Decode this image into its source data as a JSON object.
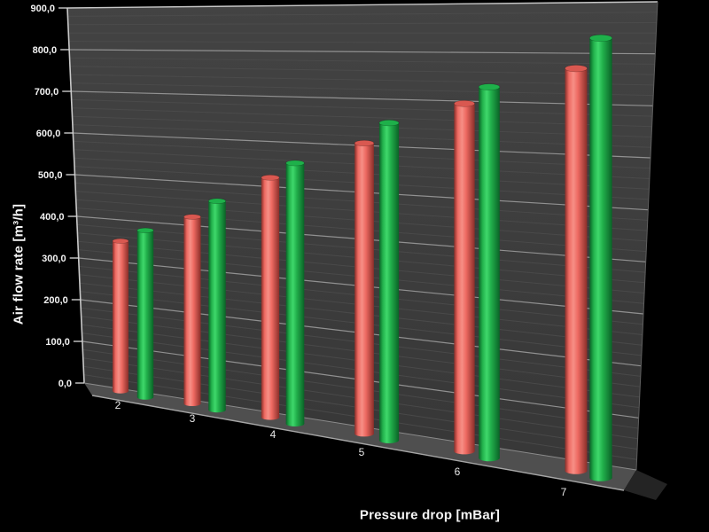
{
  "chart_data": {
    "type": "bar",
    "style": "3d-cylinder",
    "title": "",
    "xlabel": "Pressure drop [mBar]",
    "ylabel": "Air flow rate [m³/h]",
    "categories": [
      "2",
      "3",
      "4",
      "5",
      "6",
      "7"
    ],
    "series": [
      {
        "name": "red-series",
        "values": [
          350,
          420,
          520,
          605,
          695,
          770
        ],
        "color": "#ee6a62",
        "color_dark": "#8a2e29",
        "color_light": "#f68f86",
        "color_top": "#d95850"
      },
      {
        "name": "green-series",
        "values": [
          380,
          460,
          555,
          650,
          730,
          830
        ],
        "color": "#22b14c",
        "color_dark": "#0a6327",
        "color_light": "#3fd86b",
        "color_top": "#1eb04a"
      }
    ],
    "ylim": [
      0,
      900
    ],
    "y_major_step": 100,
    "y_minor_step": 20,
    "y_tick_labels": [
      "0,0",
      "100,0",
      "200,0",
      "300,0",
      "400,0",
      "500,0",
      "600,0",
      "700,0",
      "800,0",
      "900,0"
    ],
    "grid": true,
    "legend": false,
    "colors": {
      "background": "#000000",
      "wall_top": "#434343",
      "wall_bottom": "#373737",
      "grid_minor": "#4d4d4d",
      "grid_major": "#9a9a9a",
      "wall_edge_bright": "#c8c8c8",
      "wall_edge_dim": "#5f5f5f",
      "floor": "#4f4f4f",
      "floor_edge": "#a5a5a5",
      "floor_side": "#242424",
      "text": "#f2f2f2",
      "tick": "#d9d9d9"
    }
  }
}
